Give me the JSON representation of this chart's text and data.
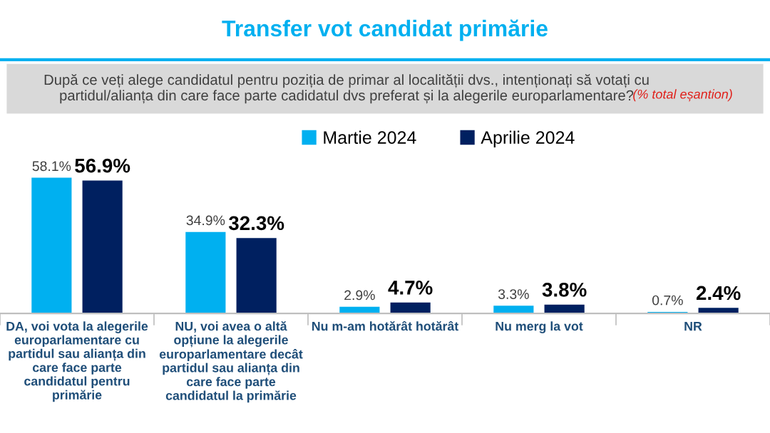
{
  "chart_data": {
    "type": "bar",
    "title": "Transfer vot candidat primărie",
    "subtitle": "După ce veți alege candidatul pentru poziția de primar al localității dvs., intenționați să votați cu\npartidul/alianța din care face parte cadidatul dvs preferat și la alegerile europarlamentare?",
    "annotations": [
      "(% total eșantion)"
    ],
    "categories": [
      "DA, voi vota la alegerile\neuroparlamentare cu\npartidul sau alianța din\ncare face parte\ncandidatul pentru\nprimărie",
      "NU, voi avea o altă\nopțiune la alegerile\neuroparlamentare decât\npartidul sau alianța din\ncare face parte\ncandidatul la primărie",
      "Nu m-am hotărât hotărât",
      "Nu merg la vot",
      "NR"
    ],
    "series": [
      {
        "name": "Martie 2024",
        "color": "#00b0f0",
        "values": [
          58.1,
          34.9,
          2.9,
          3.3,
          0.7
        ],
        "value_labels": [
          "58.1%",
          "34.9%",
          "2.9%",
          "3.3%",
          "0.7%"
        ]
      },
      {
        "name": "Aprilie 2024",
        "color": "#002060",
        "values": [
          56.9,
          32.3,
          4.7,
          3.8,
          2.4
        ],
        "value_labels": [
          "56.9%",
          "32.3%",
          "4.7%",
          "3.8%",
          "2.4%"
        ]
      }
    ],
    "legend": "top",
    "grid": false
  }
}
